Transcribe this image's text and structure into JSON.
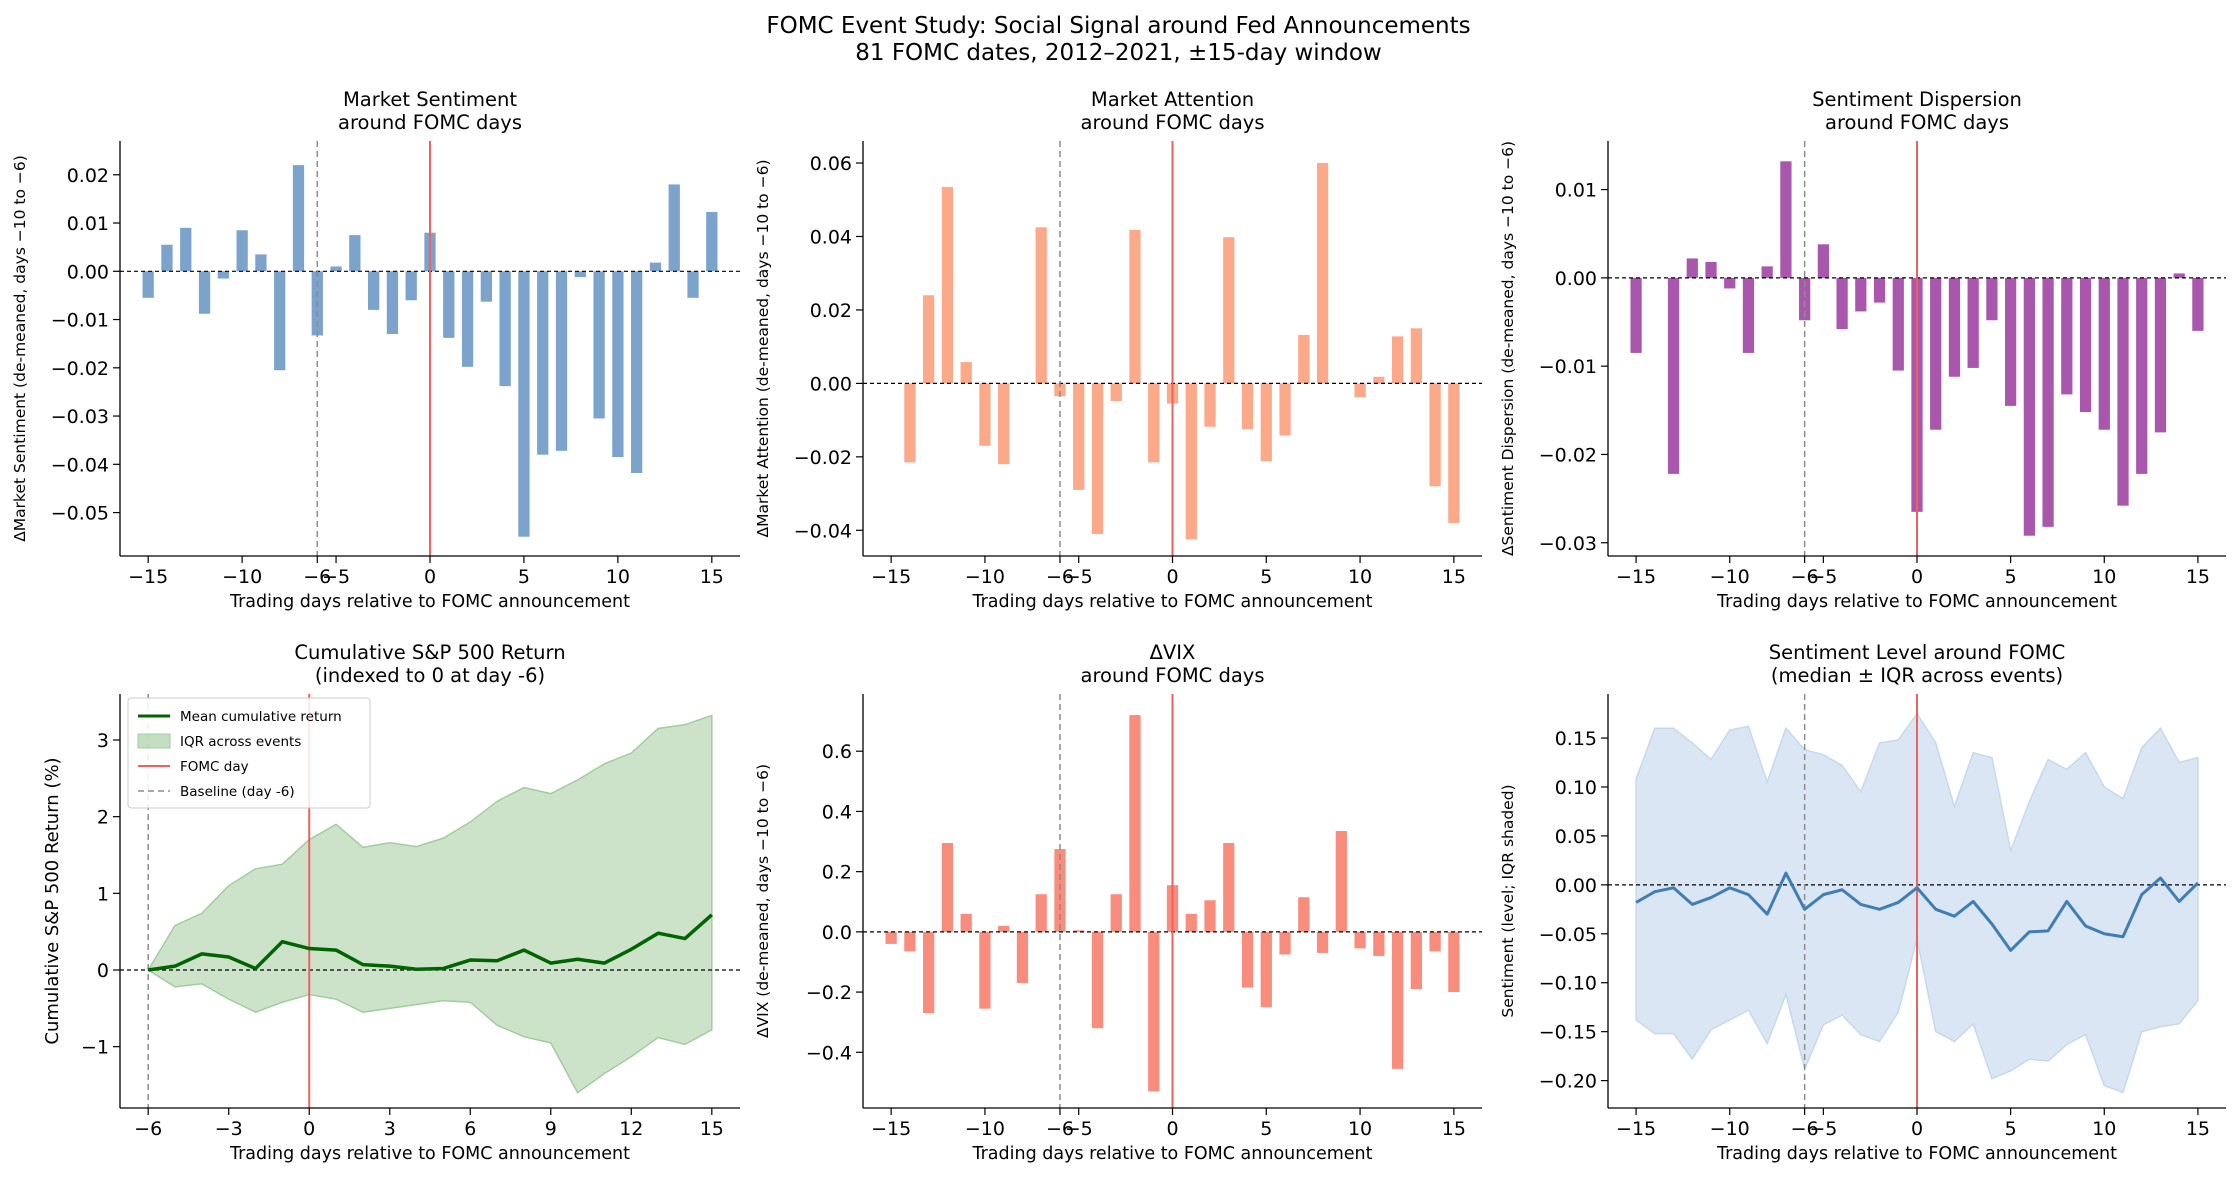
{
  "figure": {
    "title_line1": "FOMC Event Study: Social Signal around Fed Announcements",
    "title_line2": "81 FOMC dates, 2012–2021, ±15-day window"
  },
  "chart_data": [
    {
      "type": "bar",
      "title": [
        "Market Sentiment",
        "around FOMC days"
      ],
      "xlabel": "Trading days relative to FOMC announcement",
      "ylabel": "ΔMarket Sentiment (de-meaned, days −10 to −6)",
      "xlim": [
        -16.5,
        16.5
      ],
      "ylim": [
        -0.059,
        0.027
      ],
      "xticks": [
        -15,
        -10,
        -6,
        -5,
        0,
        5,
        10,
        15
      ],
      "xtick_labels": [
        "−15",
        "−10",
        "−6",
        "−5",
        "0",
        "5",
        "10",
        "15"
      ],
      "yticks": [
        -0.05,
        -0.04,
        -0.03,
        -0.02,
        -0.01,
        0.0,
        0.01,
        0.02
      ],
      "ytick_labels": [
        "−0.05",
        "−0.04",
        "−0.03",
        "−0.02",
        "−0.01",
        "0.00",
        "0.01",
        "0.02"
      ],
      "color": "#7ba3cb",
      "x": [
        -15,
        -14,
        -13,
        -12,
        -11,
        -10,
        -9,
        -8,
        -7,
        -6,
        -5,
        -4,
        -3,
        -2,
        -1,
        0,
        1,
        2,
        3,
        4,
        5,
        6,
        7,
        8,
        9,
        10,
        11,
        12,
        13,
        14,
        15
      ],
      "values": [
        -0.0055,
        0.0055,
        0.009,
        -0.0088,
        -0.0015,
        0.0085,
        0.0035,
        -0.0205,
        0.022,
        -0.0133,
        0.001,
        0.0075,
        -0.008,
        -0.013,
        -0.006,
        0.008,
        -0.0138,
        -0.0198,
        -0.0063,
        -0.0238,
        -0.055,
        -0.038,
        -0.0372,
        -0.0012,
        -0.0305,
        -0.0385,
        -0.0418,
        0.0018,
        0.018,
        -0.0055,
        0.0123
      ],
      "fomc_day": 0,
      "baseline_day": -6
    },
    {
      "type": "bar",
      "title": [
        "Market Attention",
        "around FOMC days"
      ],
      "xlabel": "Trading days relative to FOMC announcement",
      "ylabel": "ΔMarket Attention (de-meaned, days −10 to −6)",
      "xlim": [
        -16.5,
        16.5
      ],
      "ylim": [
        -0.047,
        0.066
      ],
      "xticks": [
        -15,
        -10,
        -6,
        -5,
        0,
        5,
        10,
        15
      ],
      "xtick_labels": [
        "−15",
        "−10",
        "−6",
        "−5",
        "0",
        "5",
        "10",
        "15"
      ],
      "yticks": [
        -0.04,
        -0.02,
        0.0,
        0.02,
        0.04,
        0.06
      ],
      "ytick_labels": [
        "−0.04",
        "−0.02",
        "0.00",
        "0.02",
        "0.04",
        "0.06"
      ],
      "color": "#fca98a",
      "x": [
        -15,
        -14,
        -13,
        -12,
        -11,
        -10,
        -9,
        -8,
        -7,
        -6,
        -5,
        -4,
        -3,
        -2,
        -1,
        0,
        1,
        2,
        3,
        4,
        5,
        6,
        7,
        8,
        9,
        10,
        11,
        12,
        13,
        14,
        15
      ],
      "values": [
        0.0,
        -0.0215,
        0.024,
        0.0535,
        0.0058,
        -0.017,
        -0.022,
        0.0,
        0.0425,
        -0.0035,
        -0.029,
        -0.041,
        -0.0048,
        0.0418,
        -0.0215,
        -0.0055,
        -0.0425,
        -0.0118,
        0.0398,
        -0.0125,
        -0.0212,
        -0.0142,
        0.0132,
        0.06,
        0.0,
        -0.0038,
        0.0018,
        0.0128,
        0.015,
        -0.028,
        -0.038
      ],
      "fomc_day": 0,
      "baseline_day": -6
    },
    {
      "type": "bar",
      "title": [
        "Sentiment Dispersion",
        "around FOMC days"
      ],
      "xlabel": "Trading days relative to FOMC announcement",
      "ylabel": "ΔSentiment Dispersion (de-meaned, days −10 to −6)",
      "xlim": [
        -16.5,
        16.5
      ],
      "ylim": [
        -0.0315,
        0.0155
      ],
      "xticks": [
        -15,
        -10,
        -6,
        -5,
        0,
        5,
        10,
        15
      ],
      "xtick_labels": [
        "−15",
        "−10",
        "−6",
        "−5",
        "0",
        "5",
        "10",
        "15"
      ],
      "yticks": [
        -0.03,
        -0.02,
        -0.01,
        0.0,
        0.01
      ],
      "ytick_labels": [
        "−0.03",
        "−0.02",
        "−0.01",
        "0.00",
        "0.01"
      ],
      "color": "#a956ad",
      "x": [
        -15,
        -14,
        -13,
        -12,
        -11,
        -10,
        -9,
        -8,
        -7,
        -6,
        -5,
        -4,
        -3,
        -2,
        -1,
        0,
        1,
        2,
        3,
        4,
        5,
        6,
        7,
        8,
        9,
        10,
        11,
        12,
        13,
        14,
        15
      ],
      "values": [
        -0.0085,
        0.0,
        -0.0222,
        0.0022,
        0.0018,
        -0.0012,
        -0.0085,
        0.0013,
        0.0132,
        -0.0048,
        0.0038,
        -0.0058,
        -0.0038,
        -0.0028,
        -0.0105,
        -0.0265,
        -0.0172,
        -0.0112,
        -0.0102,
        -0.0048,
        -0.0145,
        -0.0292,
        -0.0282,
        -0.0132,
        -0.0152,
        -0.0172,
        -0.0258,
        -0.0222,
        -0.0175,
        0.0005,
        -0.006
      ],
      "fomc_day": 0,
      "baseline_day": -6
    },
    {
      "type": "line",
      "title": [
        "Cumulative S&P 500 Return",
        "(indexed to 0 at day -6)"
      ],
      "xlabel": "Trading days relative to FOMC announcement",
      "ylabel": "Cumulative S&P 500 Return (%)",
      "xlim": [
        -7.05,
        16.05
      ],
      "ylim": [
        -1.8,
        3.6
      ],
      "xticks": [
        -6,
        -3,
        0,
        3,
        6,
        9,
        12,
        15
      ],
      "xtick_labels": [
        "−6",
        "−3",
        "0",
        "3",
        "6",
        "9",
        "12",
        "15"
      ],
      "yticks": [
        -1,
        0,
        1,
        2,
        3
      ],
      "ytick_labels": [
        "−1",
        "0",
        "1",
        "2",
        "3"
      ],
      "x": [
        -6,
        -5,
        -4,
        -3,
        -2,
        -1,
        0,
        1,
        2,
        3,
        4,
        5,
        6,
        7,
        8,
        9,
        10,
        11,
        12,
        13,
        14,
        15
      ],
      "series": [
        {
          "name": "Mean cumulative return",
          "values": [
            0.0,
            0.05,
            0.21,
            0.17,
            0.02,
            0.37,
            0.28,
            0.26,
            0.07,
            0.05,
            0.01,
            0.02,
            0.13,
            0.12,
            0.26,
            0.09,
            0.14,
            0.09,
            0.27,
            0.48,
            0.41,
            0.72
          ],
          "color": "#006400"
        }
      ],
      "band": {
        "name": "IQR across events",
        "color": "#a3cc9e",
        "lower": [
          0.0,
          -0.22,
          -0.18,
          -0.38,
          -0.55,
          -0.42,
          -0.32,
          -0.38,
          -0.55,
          -0.5,
          -0.45,
          -0.4,
          -0.42,
          -0.72,
          -0.87,
          -0.95,
          -1.6,
          -1.35,
          -1.13,
          -0.88,
          -0.97,
          -0.78
        ],
        "upper": [
          0.0,
          0.58,
          0.74,
          1.1,
          1.32,
          1.38,
          1.7,
          1.9,
          1.6,
          1.66,
          1.61,
          1.72,
          1.93,
          2.2,
          2.38,
          2.3,
          2.48,
          2.69,
          2.83,
          3.15,
          3.2,
          3.32
        ]
      },
      "legend": {
        "placement": "upper-left",
        "entries": [
          "Mean cumulative return",
          "IQR across events",
          "FOMC day",
          "Baseline (day -6)"
        ]
      },
      "fomc_day": 0,
      "baseline_day": -6
    },
    {
      "type": "bar",
      "title": [
        "ΔVIX",
        "around FOMC days"
      ],
      "xlabel": "Trading days relative to FOMC announcement",
      "ylabel": "ΔVIX (de-meaned, days −10 to −6)",
      "xlim": [
        -16.5,
        16.5
      ],
      "ylim": [
        -0.585,
        0.79
      ],
      "xticks": [
        -15,
        -10,
        -6,
        -5,
        0,
        5,
        10,
        15
      ],
      "xtick_labels": [
        "−15",
        "−10",
        "−6",
        "−5",
        "0",
        "5",
        "10",
        "15"
      ],
      "yticks": [
        -0.4,
        -0.2,
        0.0,
        0.2,
        0.4,
        0.6
      ],
      "ytick_labels": [
        "−0.4",
        "−0.2",
        "0.0",
        "0.2",
        "0.4",
        "0.6"
      ],
      "color": "#f98d7d",
      "x": [
        -15,
        -14,
        -13,
        -12,
        -11,
        -10,
        -9,
        -8,
        -7,
        -6,
        -5,
        -4,
        -3,
        -2,
        -1,
        0,
        1,
        2,
        3,
        4,
        5,
        6,
        7,
        8,
        9,
        10,
        11,
        12,
        13,
        14,
        15
      ],
      "values": [
        -0.04,
        -0.065,
        -0.27,
        0.295,
        0.06,
        -0.255,
        0.02,
        -0.17,
        0.125,
        0.275,
        0.005,
        -0.32,
        0.125,
        0.72,
        -0.53,
        0.155,
        0.06,
        0.105,
        0.295,
        -0.185,
        -0.25,
        -0.075,
        0.115,
        -0.07,
        0.335,
        -0.055,
        -0.08,
        -0.455,
        -0.19,
        -0.065,
        -0.2
      ],
      "fomc_day": 0,
      "baseline_day": -6
    },
    {
      "type": "area",
      "title": [
        "Sentiment Level around FOMC",
        "(median ± IQR across events)"
      ],
      "xlabel": "Trading days relative to FOMC announcement",
      "ylabel": "Sentiment (level; IQR shaded)",
      "xlim": [
        -16.5,
        16.5
      ],
      "ylim": [
        -0.228,
        0.195
      ],
      "xticks": [
        -15,
        -10,
        -6,
        -5,
        0,
        5,
        10,
        15
      ],
      "xtick_labels": [
        "−15",
        "−10",
        "−6",
        "−5",
        "0",
        "5",
        "10",
        "15"
      ],
      "yticks": [
        -0.2,
        -0.15,
        -0.1,
        -0.05,
        0.0,
        0.05,
        0.1,
        0.15
      ],
      "ytick_labels": [
        "−0.20",
        "−0.15",
        "−0.10",
        "−0.05",
        "0.00",
        "0.05",
        "0.10",
        "0.15"
      ],
      "x": [
        -15,
        -14,
        -13,
        -12,
        -11,
        -10,
        -9,
        -8,
        -7,
        -6,
        -5,
        -4,
        -3,
        -2,
        -1,
        0,
        1,
        2,
        3,
        4,
        5,
        6,
        7,
        8,
        9,
        10,
        11,
        12,
        13,
        14,
        15
      ],
      "series": [
        {
          "name": "",
          "values": [
            -0.018,
            -0.007,
            -0.003,
            -0.02,
            -0.013,
            -0.003,
            -0.01,
            -0.03,
            0.012,
            -0.025,
            -0.01,
            -0.005,
            -0.02,
            -0.025,
            -0.018,
            -0.003,
            -0.025,
            -0.032,
            -0.017,
            -0.04,
            -0.067,
            -0.048,
            -0.047,
            -0.017,
            -0.042,
            -0.05,
            -0.053,
            -0.01,
            0.007,
            -0.017,
            0.002
          ],
          "color": "#3f7db4"
        }
      ],
      "band": {
        "color": "#c6d9ec",
        "lower": [
          -0.138,
          -0.152,
          -0.152,
          -0.178,
          -0.148,
          -0.138,
          -0.128,
          -0.162,
          -0.112,
          -0.188,
          -0.143,
          -0.133,
          -0.153,
          -0.16,
          -0.13,
          -0.055,
          -0.15,
          -0.16,
          -0.142,
          -0.198,
          -0.19,
          -0.178,
          -0.18,
          -0.163,
          -0.153,
          -0.205,
          -0.212,
          -0.15,
          -0.145,
          -0.142,
          -0.118
        ],
        "upper": [
          0.108,
          0.16,
          0.16,
          0.145,
          0.128,
          0.158,
          0.162,
          0.105,
          0.16,
          0.138,
          0.133,
          0.122,
          0.095,
          0.145,
          0.148,
          0.175,
          0.145,
          0.08,
          0.135,
          0.13,
          0.035,
          0.085,
          0.128,
          0.118,
          0.135,
          0.1,
          0.088,
          0.14,
          0.16,
          0.125,
          0.13
        ]
      },
      "fomc_day": 0,
      "baseline_day": -6
    }
  ]
}
